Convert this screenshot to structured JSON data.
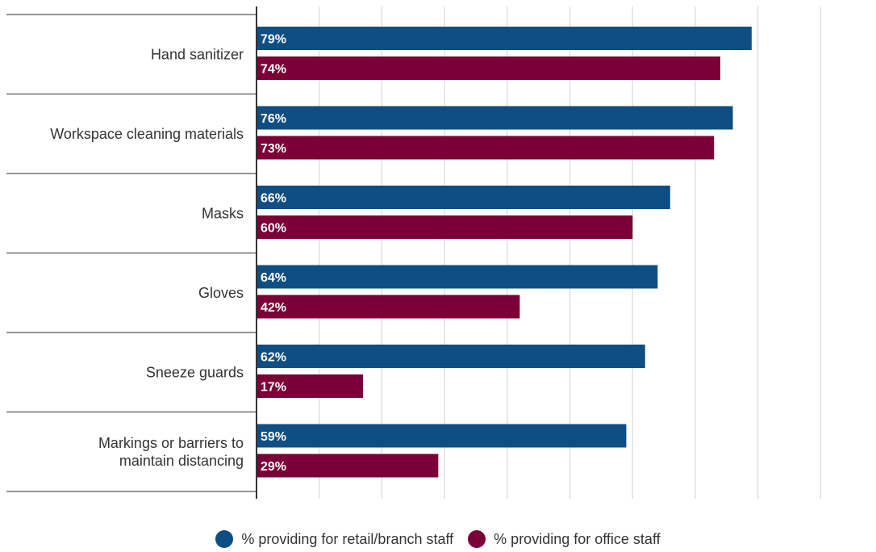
{
  "chart_data": {
    "type": "bar",
    "orientation": "horizontal",
    "categories": [
      "Hand sanitizer",
      "Workspace cleaning materials",
      "Masks",
      "Gloves",
      "Sneeze guards",
      "Markings or barriers to maintain distancing"
    ],
    "series": [
      {
        "name": "% providing for retail/branch staff",
        "values": [
          79,
          76,
          66,
          64,
          62,
          59
        ],
        "color": "#0f4e82"
      },
      {
        "name": "% providing for office staff",
        "values": [
          74,
          73,
          60,
          42,
          17,
          29
        ],
        "color": "#7a0037"
      }
    ],
    "value_suffix": "%",
    "xlim": [
      0,
      90
    ],
    "grid": true,
    "legend_position": "bottom"
  }
}
